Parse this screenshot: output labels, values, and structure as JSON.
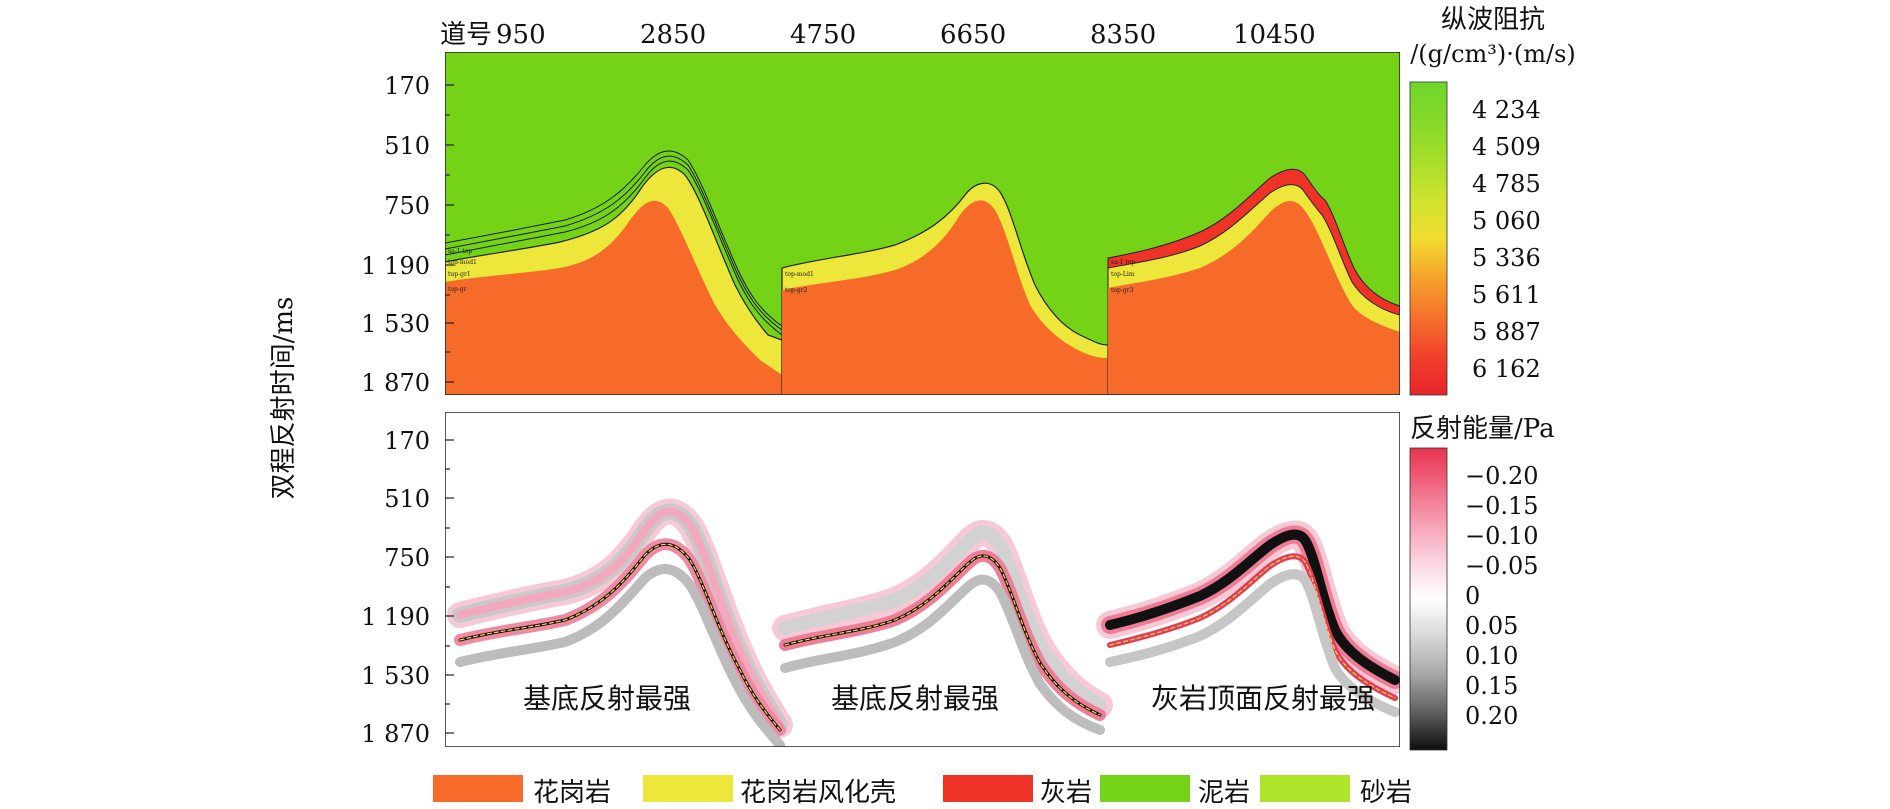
{
  "axes": {
    "trace_prefix": "道号",
    "trace_labels": [
      "950",
      "2850",
      "4750",
      "6650",
      "8350",
      "10450"
    ],
    "y_label": "双程反射时间/ms",
    "y_ticks_top": [
      "170",
      "510",
      "750",
      "1 190",
      "1 530",
      "1 870"
    ],
    "y_ticks_bottom": [
      "170",
      "510",
      "750",
      "1 190",
      "1 530",
      "1 870"
    ]
  },
  "impedance_colorbar": {
    "title_line1": "纵波阻抗",
    "title_line2": "/(g/cm³)·(m/s)",
    "ticks": [
      "4 234",
      "4 509",
      "4 785",
      "5 060",
      "5 336",
      "5 611",
      "5 887",
      "6 162"
    ],
    "colors": [
      "#6fd62a",
      "#8fdc2a",
      "#b8e02c",
      "#dde62f",
      "#f3d52f",
      "#f6a52c",
      "#f6722c",
      "#f0402a",
      "#e8242a"
    ]
  },
  "energy_colorbar": {
    "title": "反射能量/Pa",
    "ticks": [
      "−0.20",
      "−0.15",
      "−0.10",
      "−0.05",
      "0",
      "0.05",
      "0.10",
      "0.15",
      "0.20"
    ]
  },
  "annotations": {
    "panel1": "基底反射最强",
    "panel2": "基底反射最强",
    "panel3": "灰岩顶面反射最强"
  },
  "legend": [
    {
      "label": "花岗岩",
      "color": "#f66b2a"
    },
    {
      "label": "花岗岩风化壳",
      "color": "#ece73a"
    },
    {
      "label": "灰岩",
      "color": "#ef3326"
    },
    {
      "label": "泥岩",
      "color": "#74d317"
    },
    {
      "label": "砂岩",
      "color": "#aee52a"
    }
  ],
  "colors": {
    "mudstone_bg": "#74d317",
    "granite": "#f66b2a",
    "weathered": "#ece73a",
    "limestone": "#ef3326"
  }
}
